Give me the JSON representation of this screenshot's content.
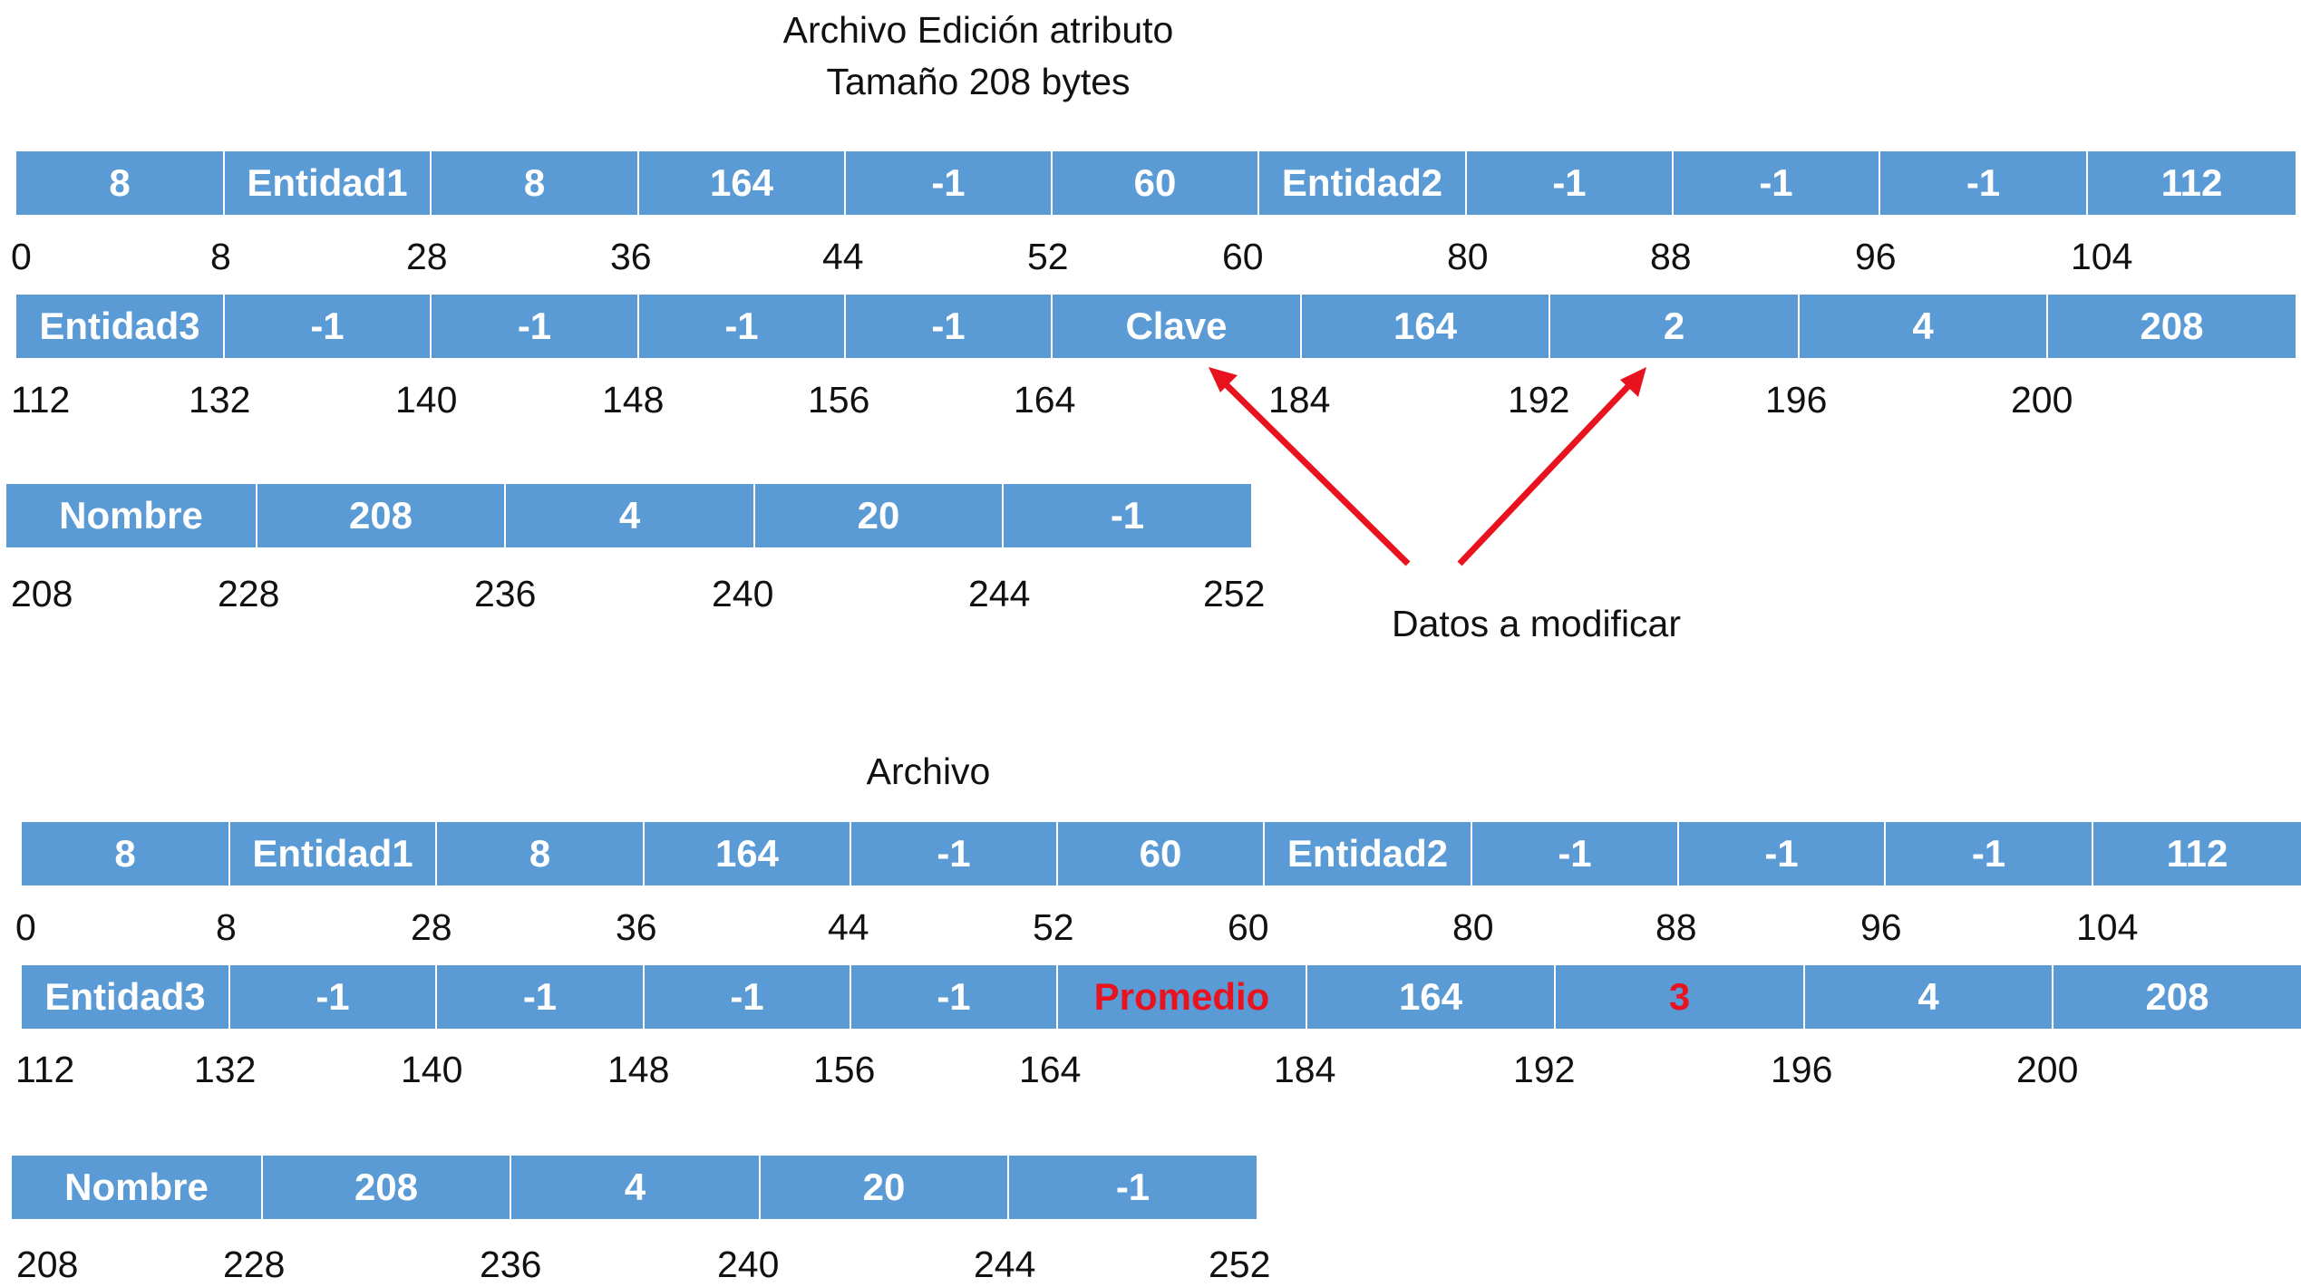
{
  "top": {
    "title": "Archivo Edición atributo",
    "subtitle": "Tamaño 208 bytes",
    "row1": {
      "cells": [
        "8",
        "Entidad1",
        "8",
        "164",
        "-1",
        "60",
        "Entidad2",
        "-1",
        "-1",
        "-1",
        "112"
      ],
      "offsets": [
        "0",
        "8",
        "28",
        "36",
        "44",
        "52",
        "60",
        "80",
        "88",
        "96",
        "104"
      ]
    },
    "row2": {
      "cells": [
        "Entidad3",
        "-1",
        "-1",
        "-1",
        "-1",
        "Clave",
        "164",
        "2",
        "4",
        "208"
      ],
      "offsets": [
        "112",
        "132",
        "140",
        "148",
        "156",
        "164",
        "184",
        "192",
        "196",
        "200"
      ]
    },
    "row3": {
      "cells": [
        "Nombre",
        "208",
        "4",
        "20",
        "-1"
      ],
      "offsets": [
        "208",
        "228",
        "236",
        "240",
        "244",
        "252"
      ]
    },
    "annotation": "Datos a modificar"
  },
  "bottom": {
    "title": "Archivo",
    "row1": {
      "cells": [
        "8",
        "Entidad1",
        "8",
        "164",
        "-1",
        "60",
        "Entidad2",
        "-1",
        "-1",
        "-1",
        "112"
      ],
      "offsets": [
        "0",
        "8",
        "28",
        "36",
        "44",
        "52",
        "60",
        "80",
        "88",
        "96",
        "104"
      ]
    },
    "row2": {
      "cells": [
        "Entidad3",
        "-1",
        "-1",
        "-1",
        "-1",
        "Promedio",
        "164",
        "3",
        "4",
        "208"
      ],
      "offsets": [
        "112",
        "132",
        "140",
        "148",
        "156",
        "164",
        "184",
        "192",
        "196",
        "200"
      ]
    },
    "row3": {
      "cells": [
        "Nombre",
        "208",
        "4",
        "20",
        "-1"
      ],
      "offsets": [
        "208",
        "228",
        "236",
        "240",
        "244",
        "252"
      ]
    }
  },
  "colors": {
    "cell_fill": "#5b9bd5",
    "cell_text": "#ffffff",
    "highlight_text": "#e8131f",
    "arrow": "#e8131f"
  },
  "icons": [
    "arrow-up-icon"
  ]
}
